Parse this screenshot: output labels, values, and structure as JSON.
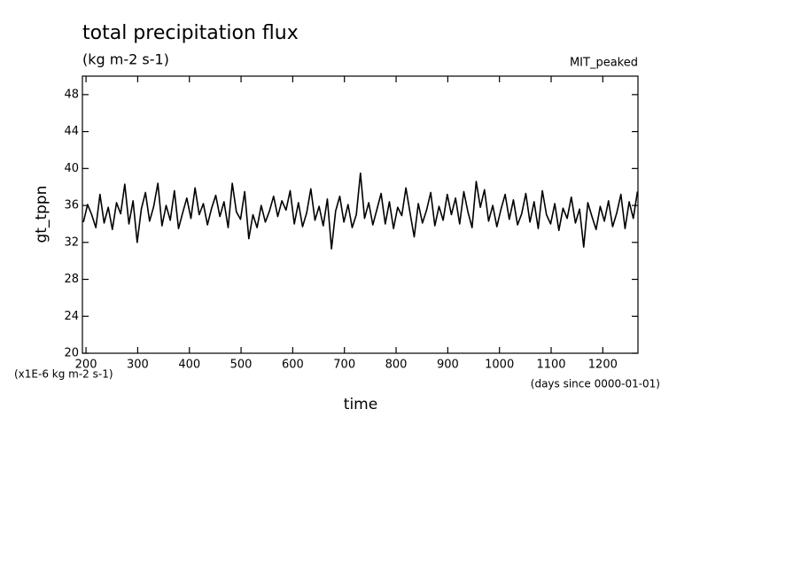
{
  "chart_data": {
    "type": "line",
    "title": "total precipitation flux",
    "subtitle": "(kg m-2 s-1)",
    "annotation": "MIT_peaked",
    "y_label": "gt_tppn",
    "x_label": "time",
    "y_units": "(x1E-6 kg m-2 s-1)",
    "x_units": "(days since 0000-01-01)",
    "xlim": [
      193,
      1268
    ],
    "ylim": [
      20,
      50
    ],
    "xticks": [
      200,
      300,
      400,
      500,
      600,
      700,
      800,
      900,
      1000,
      1100,
      1200
    ],
    "yticks": [
      20,
      24,
      28,
      32,
      36,
      40,
      44,
      48
    ],
    "x": [
      195,
      203,
      211,
      219,
      227,
      235,
      243,
      251,
      259,
      267,
      275,
      283,
      291,
      299,
      307,
      315,
      323,
      331,
      339,
      347,
      355,
      363,
      371,
      379,
      387,
      395,
      403,
      411,
      419,
      427,
      435,
      443,
      451,
      459,
      467,
      475,
      483,
      491,
      499,
      507,
      515,
      523,
      531,
      539,
      547,
      555,
      563,
      571,
      579,
      587,
      595,
      603,
      611,
      619,
      627,
      635,
      643,
      651,
      659,
      667,
      675,
      683,
      691,
      699,
      707,
      715,
      723,
      731,
      739,
      747,
      755,
      763,
      771,
      779,
      787,
      795,
      803,
      811,
      819,
      827,
      835,
      843,
      851,
      859,
      867,
      875,
      883,
      891,
      899,
      907,
      915,
      923,
      931,
      939,
      947,
      955,
      963,
      971,
      979,
      987,
      995,
      1003,
      1011,
      1019,
      1027,
      1035,
      1043,
      1051,
      1059,
      1067,
      1075,
      1083,
      1091,
      1099,
      1107,
      1115,
      1123,
      1131,
      1139,
      1147,
      1155,
      1163,
      1171,
      1179,
      1187,
      1195,
      1203,
      1211,
      1219,
      1227,
      1235,
      1243,
      1251,
      1259,
      1267
    ],
    "series": [
      {
        "name": "gt_tppn",
        "color": "#000000",
        "values": [
          34.2,
          36.1,
          35.0,
          33.6,
          37.2,
          34.1,
          35.8,
          33.4,
          36.3,
          35.1,
          38.3,
          34.0,
          36.5,
          32.0,
          35.6,
          37.4,
          34.3,
          35.9,
          38.4,
          33.8,
          36.0,
          34.4,
          37.6,
          33.5,
          35.2,
          36.8,
          34.6,
          37.9,
          35.0,
          36.2,
          33.9,
          35.7,
          37.1,
          34.8,
          36.4,
          33.6,
          38.4,
          35.3,
          34.5,
          37.5,
          32.4,
          35.0,
          33.6,
          36.0,
          34.2,
          35.4,
          37.0,
          34.8,
          36.5,
          35.5,
          37.6,
          34.0,
          36.3,
          33.7,
          35.2,
          37.8,
          34.4,
          35.9,
          33.8,
          36.7,
          31.3,
          35.4,
          37.0,
          34.2,
          36.1,
          33.6,
          35.0,
          39.5,
          34.6,
          36.3,
          33.9,
          35.6,
          37.3,
          34.0,
          36.4,
          33.5,
          35.8,
          34.9,
          37.9,
          35.2,
          32.6,
          36.2,
          34.1,
          35.5,
          37.4,
          33.8,
          35.9,
          34.4,
          37.2,
          35.0,
          36.8,
          34.0,
          37.5,
          35.3,
          33.6,
          38.6,
          35.8,
          37.7,
          34.3,
          36.0,
          33.7,
          35.6,
          37.2,
          34.5,
          36.6,
          33.9,
          35.1,
          37.3,
          34.2,
          36.4,
          33.5,
          37.6,
          35.0,
          34.0,
          36.2,
          33.3,
          35.7,
          34.6,
          36.9,
          34.1,
          35.6,
          31.5,
          36.3,
          34.8,
          33.4,
          35.9,
          34.3,
          36.5,
          33.7,
          35.2,
          37.2,
          33.5,
          36.4,
          34.6,
          37.5
        ]
      }
    ]
  }
}
